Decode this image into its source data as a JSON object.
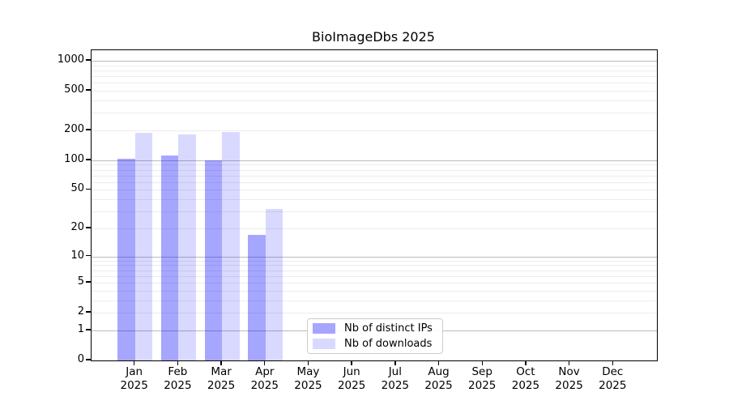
{
  "title": "BioImageDbs 2025",
  "chart_data": {
    "type": "bar",
    "title": "BioImageDbs 2025",
    "x_categories": [
      "Jan",
      "Feb",
      "Mar",
      "Apr",
      "May",
      "Jun",
      "Jul",
      "Aug",
      "Sep",
      "Oct",
      "Nov",
      "Dec"
    ],
    "x_sublabel": "2025",
    "series": [
      {
        "name": "Nb of distinct IPs",
        "color": "rgba(0,0,255,0.35)",
        "values": [
          104,
          112,
          100,
          17,
          0,
          0,
          0,
          0,
          0,
          0,
          0,
          0
        ]
      },
      {
        "name": "Nb of downloads",
        "color": "rgba(0,0,255,0.15)",
        "values": [
          190,
          183,
          193,
          32,
          0,
          0,
          0,
          0,
          0,
          0,
          0,
          0
        ]
      }
    ],
    "y_scale": "log10(1+y)",
    "y_ticks": [
      0,
      1,
      2,
      5,
      10,
      20,
      50,
      100,
      200,
      500,
      1000
    ],
    "y_major_gridlines": [
      1,
      10,
      100,
      1000
    ],
    "ylim": [
      0,
      1275
    ],
    "grid": true,
    "legend_position": "lower center"
  },
  "legend": {
    "items": [
      {
        "label": "Nb of distinct IPs",
        "color": "rgba(0,0,255,0.35)"
      },
      {
        "label": "Nb of downloads",
        "color": "rgba(0,0,255,0.15)"
      }
    ]
  },
  "colors": {
    "major_grid": "#bbbbbb",
    "minor_grid": "#ececec",
    "spine": "#000000"
  }
}
